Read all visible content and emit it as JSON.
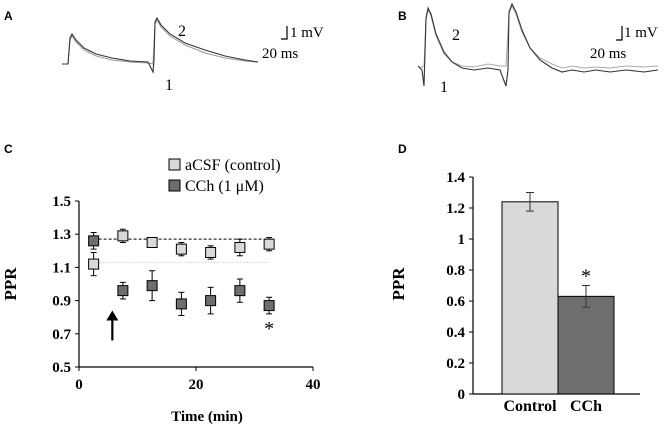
{
  "panels": {
    "A": {
      "letter": "A",
      "labels": {
        "trace1": "1",
        "trace2": "2"
      },
      "scalebar": {
        "voltage": "1 mV",
        "time": "20 ms"
      }
    },
    "B": {
      "letter": "B",
      "labels": {
        "trace1": "1",
        "trace2": "2"
      },
      "scalebar": {
        "voltage": "1 mV",
        "time": "20 ms"
      }
    }
  },
  "chart_data": [
    {
      "panel": "C",
      "type": "scatter",
      "xlabel": "Time (min)",
      "ylabel": "PPR",
      "xlim": [
        0,
        40
      ],
      "ylim": [
        0.5,
        1.5
      ],
      "xticks": [
        "0",
        "20",
        "40"
      ],
      "yticks": [
        "0.5",
        "0.7",
        "0.9",
        "1.1",
        "1.3",
        "1.5"
      ],
      "legend_position": "top",
      "series": [
        {
          "name": "aCSF (control)",
          "color": "#d9d9d9",
          "x": [
            2.5,
            7.5,
            12.5,
            17.5,
            22.5,
            27.5,
            32.5
          ],
          "y": [
            1.12,
            1.29,
            1.25,
            1.21,
            1.19,
            1.22,
            1.24
          ],
          "err": [
            0.07,
            0.04,
            0.03,
            0.04,
            0.04,
            0.05,
            0.04
          ]
        },
        {
          "name": "CCh (1 μM)",
          "color": "#6e6e6e",
          "x": [
            2.5,
            7.5,
            12.5,
            17.5,
            22.5,
            27.5,
            32.5
          ],
          "y": [
            1.26,
            0.96,
            0.99,
            0.88,
            0.9,
            0.96,
            0.87
          ],
          "err": [
            0.05,
            0.05,
            0.09,
            0.07,
            0.08,
            0.07,
            0.05
          ]
        }
      ],
      "reference_lines": [
        {
          "series": "CCh (1 μM)",
          "y": 1.27,
          "style": "dashed"
        },
        {
          "series": "aCSF (control)",
          "y": 1.13,
          "style": "dotted"
        }
      ],
      "annotations": [
        {
          "text": "*",
          "x": 32.5,
          "y": 0.74
        },
        {
          "text": "↑",
          "x": 5.7,
          "y": 0.66
        }
      ]
    },
    {
      "panel": "D",
      "type": "bar",
      "ylabel": "PPR",
      "categories": [
        "Control",
        "CCh"
      ],
      "values": [
        1.24,
        0.63
      ],
      "errors": [
        0.06,
        0.07
      ],
      "colors": [
        "#d9d9d9",
        "#6e6e6e"
      ],
      "ylim": [
        0,
        1.4
      ],
      "yticks": [
        "0",
        "0.2",
        "0.4",
        "0.6",
        "0.8",
        "1",
        "1.2",
        "1.4"
      ],
      "annotations": [
        {
          "text": "*",
          "category": "CCh",
          "y": 0.77
        }
      ]
    }
  ]
}
